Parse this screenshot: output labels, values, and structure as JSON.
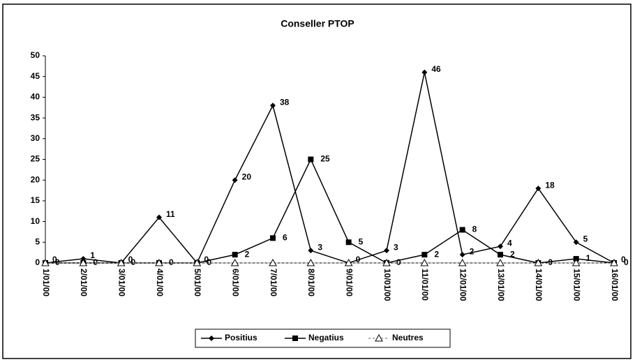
{
  "chart_data": {
    "type": "line",
    "title": "Conseller PTOP",
    "categories": [
      "1/01/00",
      "2/01/00",
      "3/01/00",
      "4/01/00",
      "5/01/00",
      "6/01/00",
      "7/01/00",
      "8/01/00",
      "9/01/00",
      "10/01/00",
      "11/01/00",
      "12/01/00",
      "13/01/00",
      "14/01/00",
      "15/01/00",
      "16/01/00"
    ],
    "series": [
      {
        "name": "Positius",
        "color": "#000000",
        "marker": "diamond",
        "values": [
          0,
          1,
          0,
          11,
          0,
          20,
          38,
          3,
          0,
          3,
          46,
          2,
          4,
          18,
          5,
          0
        ]
      },
      {
        "name": "Negatius",
        "color": "#000000",
        "marker": "square",
        "values": [
          0,
          0,
          0,
          0,
          0,
          2,
          6,
          25,
          5,
          0,
          2,
          8,
          2,
          0,
          1,
          0
        ]
      },
      {
        "name": "Neutres",
        "color": "#999999",
        "marker": "triangle",
        "values": [
          0,
          0,
          0,
          0,
          0,
          0,
          0,
          0,
          0,
          0,
          0,
          0,
          0,
          0,
          0,
          0
        ]
      }
    ],
    "ylim": [
      0,
      50
    ],
    "yticks": [
      0,
      5,
      10,
      15,
      20,
      25,
      30,
      35,
      40,
      45,
      50
    ],
    "grid": false,
    "legend": "bottom"
  }
}
